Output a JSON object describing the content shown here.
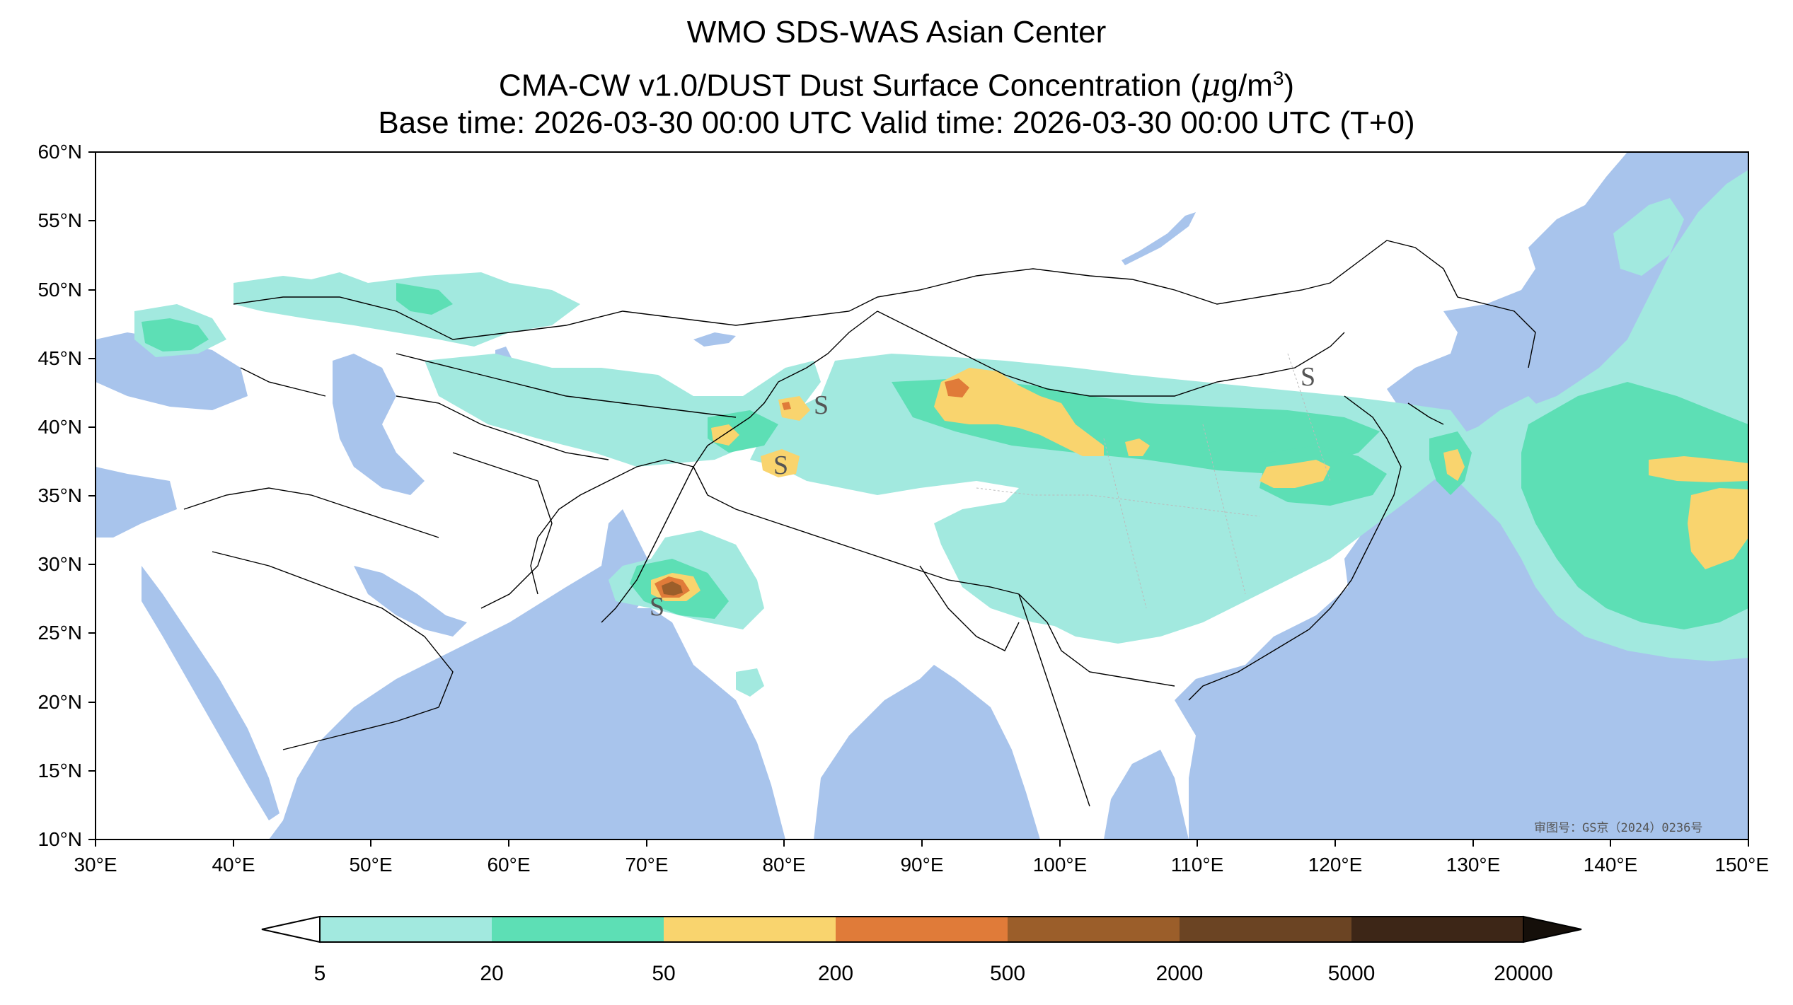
{
  "title": {
    "line1": "WMO SDS-WAS Asian Center",
    "line2_prefix": "CMA-CW v1.0/DUST Dust Surface Concentration (",
    "line2_mu": "μ",
    "line2_unit": "g/m",
    "line2_exp": "3",
    "line2_suffix": ")",
    "line3": "Base time: 2026-03-30 00:00 UTC Valid time: 2026-03-30 00:00 UTC (T+0)"
  },
  "map": {
    "extent": {
      "lon": [
        30,
        150
      ],
      "lat": [
        10,
        60
      ]
    },
    "lat_ticks": [
      "60°N",
      "55°N",
      "50°N",
      "45°N",
      "40°N",
      "35°N",
      "30°N",
      "25°N",
      "20°N",
      "15°N",
      "10°N"
    ],
    "lon_ticks": [
      "30°E",
      "40°E",
      "50°E",
      "60°E",
      "70°E",
      "80°E",
      "90°E",
      "100°E",
      "110°E",
      "120°E",
      "130°E",
      "140°E",
      "150°E"
    ],
    "approval_text": "审图号：GS京（2024）0236号",
    "colors": {
      "ocean": "#a8c4ec",
      "land": "#ffffff",
      "border": "#000000"
    }
  },
  "colorbar": {
    "levels": [
      "5",
      "20",
      "50",
      "200",
      "500",
      "2000",
      "5000",
      "20000"
    ],
    "colors": [
      "#a2e9df",
      "#5ddfb5",
      "#f9d46e",
      "#e07b39",
      "#9b5e2a",
      "#6b4423",
      "#3d2617",
      "#150f0a"
    ],
    "extend": "both"
  }
}
